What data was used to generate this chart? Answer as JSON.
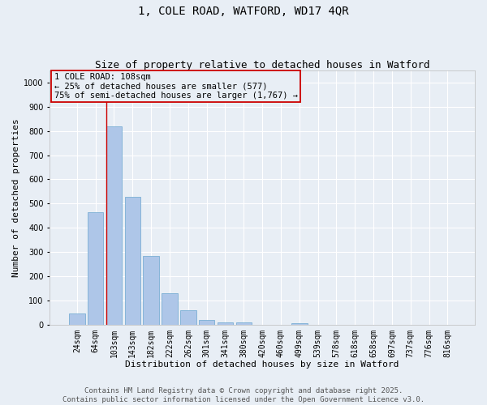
{
  "title": "1, COLE ROAD, WATFORD, WD17 4QR",
  "subtitle": "Size of property relative to detached houses in Watford",
  "xlabel": "Distribution of detached houses by size in Watford",
  "ylabel": "Number of detached properties",
  "categories": [
    "24sqm",
    "64sqm",
    "103sqm",
    "143sqm",
    "182sqm",
    "222sqm",
    "262sqm",
    "301sqm",
    "341sqm",
    "380sqm",
    "420sqm",
    "460sqm",
    "499sqm",
    "539sqm",
    "578sqm",
    "618sqm",
    "658sqm",
    "697sqm",
    "737sqm",
    "776sqm",
    "816sqm"
  ],
  "values": [
    47,
    463,
    820,
    527,
    282,
    130,
    60,
    20,
    10,
    10,
    0,
    0,
    5,
    0,
    0,
    0,
    0,
    0,
    0,
    0,
    0
  ],
  "bar_color": "#aec6e8",
  "bar_edge_color": "#7bafd4",
  "vline_color": "#cc0000",
  "vline_x_index": 2,
  "ylim": [
    0,
    1050
  ],
  "yticks": [
    0,
    100,
    200,
    300,
    400,
    500,
    600,
    700,
    800,
    900,
    1000
  ],
  "annotation_text": "1 COLE ROAD: 108sqm\n← 25% of detached houses are smaller (577)\n75% of semi-detached houses are larger (1,767) →",
  "annotation_box_edge_color": "#cc0000",
  "bg_color": "#e8eef5",
  "footer_text": "Contains HM Land Registry data © Crown copyright and database right 2025.\nContains public sector information licensed under the Open Government Licence v3.0.",
  "title_fontsize": 10,
  "subtitle_fontsize": 9,
  "axis_label_fontsize": 8,
  "tick_fontsize": 7,
  "annotation_fontsize": 7.5,
  "footer_fontsize": 6.5
}
